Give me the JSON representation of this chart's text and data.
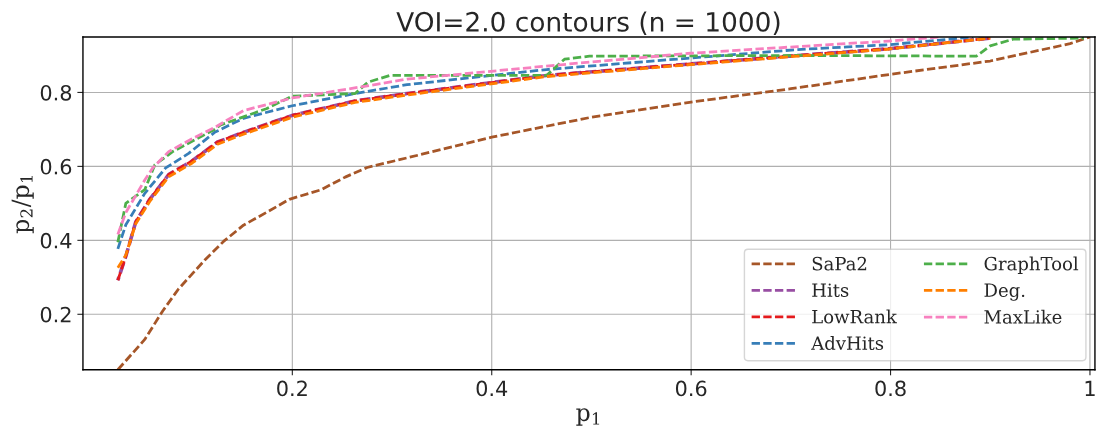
{
  "chart_data": {
    "type": "line",
    "title": "VOI=2.0 contours (n = 1000)",
    "xlabel": "p$_{1}$",
    "ylabel": "p$_{2}$/p$_{1}$",
    "xlim": [
      -0.01,
      1.005
    ],
    "ylim": [
      0.05,
      0.95
    ],
    "xticks": [
      0.2,
      0.4,
      0.6,
      0.8,
      1
    ],
    "yticks": [
      0.2,
      0.4,
      0.6,
      0.8
    ],
    "grid": true,
    "legend": "bottom right",
    "line_style": "dashed",
    "marker": "none",
    "series": [
      {
        "name": "SaPa2",
        "color": "#a65628",
        "x": [
          0.025,
          0.052,
          0.07,
          0.086,
          0.112,
          0.131,
          0.151,
          0.177,
          0.197,
          0.229,
          0.253,
          0.275,
          0.315,
          0.4,
          0.5,
          0.6,
          0.7,
          0.8,
          0.9,
          0.98,
          1.0
        ],
        "values": [
          0.05,
          0.132,
          0.209,
          0.269,
          0.346,
          0.397,
          0.441,
          0.48,
          0.511,
          0.537,
          0.571,
          0.597,
          0.623,
          0.679,
          0.733,
          0.774,
          0.81,
          0.849,
          0.885,
          0.932,
          0.95
        ]
      },
      {
        "name": "Hits",
        "color": "#984ea3",
        "x": [
          0.025,
          0.033,
          0.043,
          0.057,
          0.076,
          0.099,
          0.125,
          0.151,
          0.2,
          0.263,
          0.315,
          0.455,
          0.599,
          0.707,
          0.798,
          0.9
        ],
        "values": [
          0.292,
          0.357,
          0.45,
          0.511,
          0.578,
          0.614,
          0.666,
          0.692,
          0.738,
          0.777,
          0.797,
          0.846,
          0.877,
          0.9,
          0.918,
          0.947
        ]
      },
      {
        "name": "LowRank",
        "color": "#e41a1c",
        "x": [
          0.025,
          0.033,
          0.043,
          0.057,
          0.076,
          0.099,
          0.125,
          0.151,
          0.2,
          0.263,
          0.315,
          0.455,
          0.599,
          0.707,
          0.798,
          0.9
        ],
        "values": [
          0.292,
          0.357,
          0.45,
          0.511,
          0.578,
          0.614,
          0.666,
          0.692,
          0.738,
          0.777,
          0.797,
          0.846,
          0.877,
          0.9,
          0.918,
          0.947
        ]
      },
      {
        "name": "AdvHits",
        "color": "#377eb8",
        "x": [
          0.025,
          0.033,
          0.052,
          0.073,
          0.096,
          0.122,
          0.151,
          0.2,
          0.263,
          0.315,
          0.455,
          0.599,
          0.707,
          0.798,
          0.883
        ],
        "values": [
          0.377,
          0.442,
          0.527,
          0.596,
          0.635,
          0.692,
          0.73,
          0.764,
          0.797,
          0.821,
          0.862,
          0.893,
          0.916,
          0.929,
          0.95
        ]
      },
      {
        "name": "GraphTool",
        "color": "#4daf4a",
        "x": [
          0.025,
          0.033,
          0.038,
          0.052,
          0.062,
          0.08,
          0.122,
          0.128,
          0.174,
          0.18,
          0.2,
          0.263,
          0.276,
          0.298,
          0.455,
          0.473,
          0.498,
          0.707,
          0.886,
          0.9,
          0.923,
          0.994
        ],
        "values": [
          0.395,
          0.5,
          0.51,
          0.537,
          0.604,
          0.64,
          0.7,
          0.712,
          0.756,
          0.764,
          0.79,
          0.797,
          0.828,
          0.846,
          0.846,
          0.89,
          0.898,
          0.9,
          0.898,
          0.926,
          0.944,
          0.947
        ]
      },
      {
        "name": "Deg.",
        "color": "#ff7f00",
        "x": [
          0.025,
          0.033,
          0.043,
          0.057,
          0.076,
          0.099,
          0.125,
          0.151,
          0.2,
          0.263,
          0.315,
          0.455,
          0.599,
          0.707,
          0.798,
          0.9
        ],
        "values": [
          0.326,
          0.36,
          0.445,
          0.505,
          0.572,
          0.608,
          0.66,
          0.687,
          0.733,
          0.773,
          0.793,
          0.843,
          0.875,
          0.898,
          0.917,
          0.947
        ]
      },
      {
        "name": "MaxLike",
        "color": "#f781bf",
        "x": [
          0.025,
          0.033,
          0.052,
          0.06,
          0.076,
          0.099,
          0.122,
          0.151,
          0.177,
          0.2,
          0.269,
          0.315,
          0.478,
          0.599,
          0.707,
          0.798,
          0.85
        ],
        "values": [
          0.416,
          0.475,
          0.563,
          0.596,
          0.64,
          0.674,
          0.705,
          0.751,
          0.769,
          0.785,
          0.815,
          0.836,
          0.877,
          0.906,
          0.924,
          0.939,
          0.95
        ]
      }
    ]
  }
}
